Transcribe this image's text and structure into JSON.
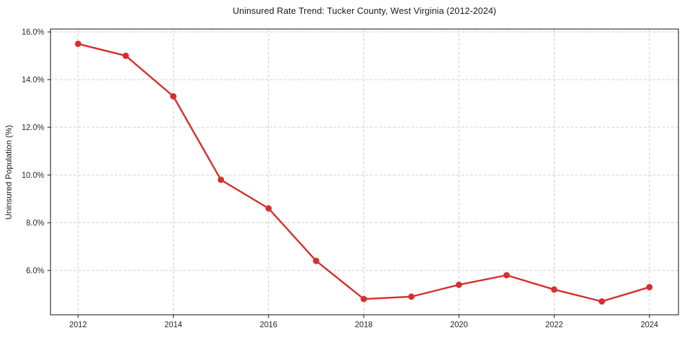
{
  "chart_data": {
    "type": "line",
    "title": "Uninsured Rate Trend: Tucker County, West Virginia (2012-2024)",
    "xlabel": "",
    "ylabel": "Uninsured Population (%)",
    "x": [
      2012,
      2013,
      2014,
      2015,
      2016,
      2017,
      2018,
      2019,
      2020,
      2021,
      2022,
      2023,
      2024
    ],
    "values": [
      15.5,
      15.0,
      13.3,
      9.8,
      8.6,
      6.4,
      4.8,
      4.9,
      5.4,
      5.8,
      5.2,
      4.7,
      5.3
    ],
    "xlim": [
      2011.42,
      2024.61
    ],
    "ylim": [
      4.14,
      16.12
    ],
    "x_ticks": [
      2012,
      2014,
      2016,
      2018,
      2020,
      2022,
      2024
    ],
    "x_tick_labels": [
      "2012",
      "2014",
      "2016",
      "2018",
      "2020",
      "2022",
      "2024"
    ],
    "y_ticks": [
      6,
      8,
      10,
      12,
      14,
      16
    ],
    "y_tick_labels": [
      "6.0%",
      "8.0%",
      "10.0%",
      "12.0%",
      "14.0%",
      "16.0%"
    ],
    "grid": true,
    "legend_position": "none",
    "colors": {
      "line": "#d62f2f",
      "marker": "#d62f2f",
      "grid": "#cccccc",
      "spine": "#333333",
      "tick": "#333333",
      "text": "#262626",
      "background": "#ffffff"
    }
  }
}
